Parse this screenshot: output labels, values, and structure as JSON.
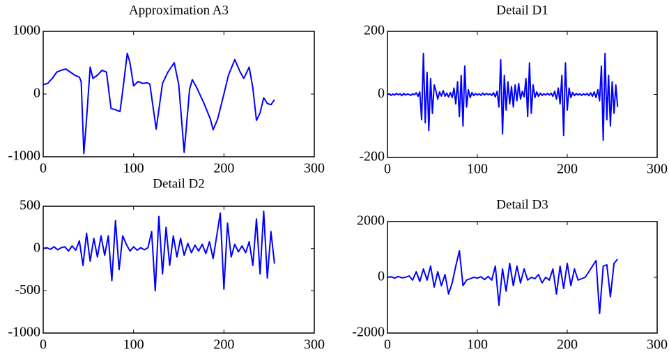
{
  "chart_data": [
    {
      "type": "line",
      "title": "Approximation A3",
      "color": "#0000ff",
      "x": [
        0,
        5,
        10,
        15,
        20,
        25,
        30,
        35,
        40,
        42,
        45,
        48,
        52,
        55,
        60,
        65,
        70,
        75,
        80,
        85,
        88,
        93,
        96,
        100,
        105,
        110,
        115,
        118,
        125,
        132,
        138,
        145,
        150,
        156,
        162,
        165,
        170,
        178,
        185,
        188,
        193,
        200,
        205,
        212,
        218,
        222,
        228,
        232,
        236,
        240,
        244,
        248,
        252,
        256
      ],
      "values": [
        150,
        170,
        250,
        350,
        380,
        400,
        350,
        300,
        270,
        200,
        -950,
        -400,
        430,
        250,
        300,
        380,
        350,
        -230,
        -250,
        -280,
        50,
        650,
        500,
        130,
        200,
        170,
        180,
        160,
        -560,
        170,
        350,
        500,
        150,
        -930,
        80,
        230,
        100,
        -150,
        -400,
        -570,
        -400,
        0,
        300,
        550,
        350,
        250,
        430,
        100,
        -420,
        -300,
        -60,
        -150,
        -170,
        -90
      ],
      "xlim": [
        0,
        300
      ],
      "xticks": [
        0,
        100,
        200,
        300
      ],
      "ylim": [
        -1000,
        1000
      ],
      "yticks": [
        -1000,
        0,
        1000
      ]
    },
    {
      "type": "line",
      "title": "Detail D1",
      "color": "#0000ff",
      "x": [
        0,
        2,
        4,
        6,
        8,
        10,
        12,
        14,
        16,
        18,
        20,
        22,
        24,
        26,
        28,
        30,
        32,
        34,
        36,
        38,
        40,
        42,
        44,
        46,
        48,
        50,
        52,
        54,
        56,
        58,
        60,
        62,
        64,
        66,
        68,
        70,
        72,
        74,
        76,
        78,
        80,
        82,
        84,
        86,
        88,
        90,
        92,
        94,
        96,
        98,
        100,
        102,
        104,
        106,
        108,
        110,
        112,
        114,
        116,
        118,
        120,
        122,
        124,
        126,
        128,
        130,
        132,
        134,
        136,
        138,
        140,
        142,
        144,
        146,
        148,
        150,
        152,
        154,
        156,
        158,
        160,
        162,
        164,
        166,
        168,
        170,
        172,
        174,
        176,
        178,
        180,
        182,
        184,
        186,
        188,
        190,
        192,
        194,
        196,
        198,
        200,
        202,
        204,
        206,
        208,
        210,
        212,
        214,
        216,
        218,
        220,
        222,
        224,
        226,
        228,
        230,
        232,
        234,
        236,
        238,
        240,
        242,
        244,
        246,
        248,
        250,
        252,
        254,
        256
      ],
      "values": [
        0,
        2,
        -3,
        1,
        -2,
        3,
        -1,
        2,
        -4,
        3,
        -2,
        1,
        0,
        -3,
        2,
        -1,
        5,
        -6,
        8,
        -80,
        130,
        -90,
        70,
        -115,
        50,
        -60,
        30,
        10,
        -15,
        8,
        -5,
        12,
        -6,
        4,
        -8,
        6,
        -10,
        20,
        -30,
        40,
        -70,
        60,
        -100,
        90,
        -40,
        15,
        -10,
        6,
        -4,
        3,
        -2,
        2,
        -3,
        4,
        -2,
        3,
        -1,
        2,
        -3,
        5,
        -8,
        10,
        -40,
        110,
        -125,
        60,
        -50,
        40,
        -30,
        25,
        -40,
        30,
        -20,
        35,
        -15,
        10,
        -8,
        50,
        -70,
        100,
        -60,
        30,
        -10,
        8,
        -6,
        4,
        -3,
        2,
        -2,
        3,
        -2,
        4,
        -6,
        10,
        -15,
        20,
        -30,
        60,
        -130,
        100,
        -50,
        20,
        -10,
        6,
        -4,
        3,
        -2,
        2,
        -3,
        2,
        -2,
        3,
        -4,
        5,
        -6,
        8,
        -10,
        15,
        -20,
        90,
        -145,
        130,
        -80,
        60,
        -100,
        40,
        -60,
        30,
        -40
      ],
      "xlim": [
        0,
        300
      ],
      "xticks": [
        0,
        100,
        200,
        300
      ],
      "ylim": [
        -200,
        200
      ],
      "yticks": [
        -200,
        0,
        200
      ]
    },
    {
      "type": "line",
      "title": "Detail D2",
      "color": "#0000ff",
      "x": [
        0,
        4,
        8,
        12,
        16,
        20,
        24,
        28,
        32,
        36,
        40,
        44,
        48,
        52,
        56,
        60,
        64,
        68,
        72,
        76,
        80,
        84,
        88,
        92,
        96,
        100,
        104,
        108,
        112,
        116,
        120,
        124,
        128,
        132,
        136,
        140,
        144,
        148,
        152,
        156,
        160,
        164,
        168,
        172,
        176,
        180,
        184,
        188,
        192,
        196,
        200,
        204,
        208,
        212,
        216,
        220,
        224,
        228,
        232,
        236,
        240,
        244,
        248,
        252,
        256
      ],
      "values": [
        0,
        10,
        -10,
        20,
        -15,
        10,
        20,
        -30,
        30,
        -20,
        90,
        -200,
        180,
        -150,
        120,
        -100,
        150,
        -80,
        150,
        -380,
        330,
        -250,
        150,
        50,
        -30,
        20,
        -20,
        10,
        -15,
        10,
        200,
        -500,
        380,
        -300,
        250,
        -200,
        150,
        -100,
        120,
        -80,
        60,
        -50,
        40,
        -30,
        50,
        -60,
        80,
        -120,
        150,
        420,
        -480,
        300,
        -100,
        50,
        -40,
        30,
        -50,
        80,
        -200,
        350,
        -300,
        440,
        -350,
        200,
        -180
      ],
      "xlim": [
        0,
        300
      ],
      "xticks": [
        0,
        100,
        200,
        300
      ],
      "ylim": [
        -1000,
        500
      ],
      "yticks": [
        -1000,
        -500,
        0,
        500
      ]
    },
    {
      "type": "line",
      "title": "Detail D3",
      "color": "#0000ff",
      "x": [
        0,
        4,
        8,
        12,
        16,
        20,
        24,
        28,
        32,
        36,
        40,
        44,
        48,
        52,
        56,
        60,
        64,
        68,
        72,
        76,
        80,
        84,
        88,
        92,
        96,
        100,
        104,
        108,
        112,
        116,
        120,
        124,
        128,
        132,
        136,
        140,
        144,
        148,
        152,
        156,
        160,
        164,
        168,
        172,
        176,
        180,
        184,
        188,
        192,
        196,
        200,
        204,
        208,
        212,
        216,
        220,
        224,
        228,
        232,
        236,
        240,
        244,
        248,
        252,
        256
      ],
      "values": [
        0,
        20,
        -30,
        30,
        -20,
        0,
        50,
        -100,
        200,
        -150,
        300,
        -100,
        400,
        -350,
        200,
        -300,
        100,
        -600,
        -200,
        400,
        950,
        -300,
        -100,
        -50,
        0,
        -30,
        20,
        -80,
        30,
        -100,
        400,
        -1000,
        300,
        -500,
        500,
        -300,
        400,
        -200,
        300,
        -100,
        0,
        -50,
        100,
        -200,
        0,
        -100,
        300,
        -600,
        400,
        -400,
        500,
        -300,
        300,
        -100,
        -50,
        0,
        200,
        400,
        600,
        -1300,
        400,
        450,
        -700,
        500,
        650
      ],
      "xlim": [
        0,
        300
      ],
      "xticks": [
        0,
        100,
        200,
        300
      ],
      "ylim": [
        -2000,
        2000
      ],
      "yticks": [
        -2000,
        0,
        2000
      ]
    }
  ]
}
